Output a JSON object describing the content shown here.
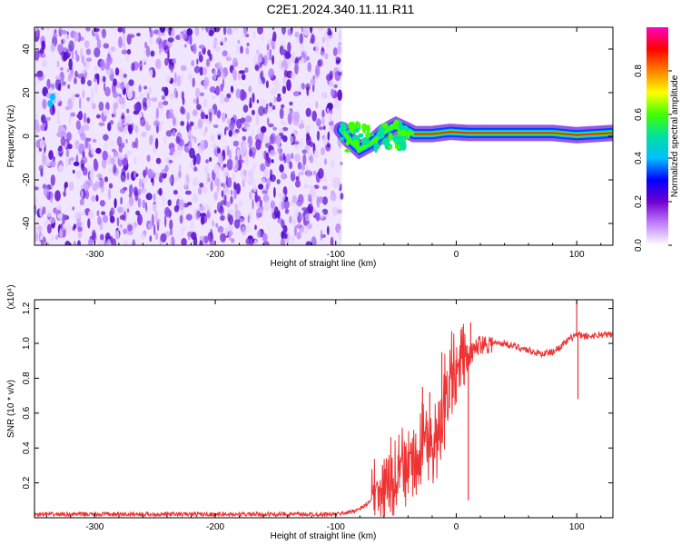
{
  "title": "C2E1.2024.340.11.11.R11",
  "colors": {
    "snr_line": "#ee3333",
    "colormap": [
      "#ffffff",
      "#c080ff",
      "#7000d0",
      "#0000ff",
      "#00c0ff",
      "#00e0a0",
      "#40ff00",
      "#ffff00",
      "#ff8000",
      "#ff0000",
      "#ff00c0"
    ]
  },
  "chart_data": [
    {
      "type": "heatmap",
      "name": "spectrogram",
      "xlabel": "Height of straight line (km)",
      "ylabel": "Frequency (Hz)",
      "xlim": [
        -350,
        130
      ],
      "ylim": [
        -50,
        50
      ],
      "xticks": [
        -300,
        -200,
        -100,
        0,
        100
      ],
      "yticks": [
        -40,
        -20,
        0,
        20,
        40
      ],
      "colorbar": {
        "label": "Normalized spectral amplitude",
        "range": [
          0,
          1
        ],
        "ticks": [
          "0.0",
          "0.2",
          "0.4",
          "0.6",
          "0.8"
        ]
      },
      "features": {
        "noise_region_x": [
          -350,
          -95
        ],
        "signal_track": [
          {
            "x": -95,
            "y": 3
          },
          {
            "x": -88,
            "y": -2
          },
          {
            "x": -80,
            "y": -6
          },
          {
            "x": -70,
            "y": -3
          },
          {
            "x": -60,
            "y": 2
          },
          {
            "x": -50,
            "y": 5
          },
          {
            "x": -42,
            "y": 3
          },
          {
            "x": -35,
            "y": 1
          },
          {
            "x": -20,
            "y": 1
          },
          {
            "x": -5,
            "y": 2
          },
          {
            "x": 10,
            "y": 1.5
          },
          {
            "x": 40,
            "y": 1.5
          },
          {
            "x": 80,
            "y": 1.5
          },
          {
            "x": 100,
            "y": 0.5
          },
          {
            "x": 130,
            "y": 1.5
          }
        ]
      }
    },
    {
      "type": "line",
      "name": "snr",
      "xlabel": "Height of straight line (km)",
      "ylabel": "SNR (10 * v/v)",
      "scale_label": "(x10⁴)",
      "xlim": [
        -350,
        130
      ],
      "ylim": [
        0,
        1.25
      ],
      "xticks": [
        -300,
        -200,
        -100,
        0,
        100
      ],
      "yticks": [
        "0.2",
        "0.4",
        "0.6",
        "0.8",
        "1.0",
        "1.2"
      ],
      "series": [
        {
          "x": [
            -350,
            -300,
            -250,
            -200,
            -150,
            -110,
            -100,
            -90,
            -80,
            -70,
            -60,
            -50,
            -45,
            -40,
            -35,
            -30,
            -25,
            -20,
            -15,
            -10,
            -5,
            0,
            5,
            10,
            15,
            20,
            25,
            30,
            40,
            50,
            60,
            70,
            80,
            90,
            95,
            100,
            105,
            110,
            120,
            130
          ],
          "y": [
            0.02,
            0.02,
            0.02,
            0.02,
            0.02,
            0.02,
            0.02,
            0.03,
            0.05,
            0.1,
            0.14,
            0.2,
            0.28,
            0.33,
            0.3,
            0.38,
            0.42,
            0.3,
            0.5,
            0.62,
            0.82,
            0.85,
            0.9,
            0.92,
            0.96,
            1.0,
            1.0,
            1.0,
            1.0,
            0.98,
            0.96,
            0.94,
            0.95,
            1.0,
            1.03,
            1.05,
            1.04,
            1.04,
            1.05,
            1.05
          ]
        }
      ],
      "spikes": [
        {
          "x": -28,
          "y": 0.75
        },
        {
          "x": -22,
          "y": 0.72
        },
        {
          "x": -12,
          "y": 0.95
        },
        {
          "x": 10,
          "y": 0.1
        },
        {
          "x": 12,
          "y": 1.12
        },
        {
          "x": 100,
          "y": 1.25
        },
        {
          "x": 101,
          "y": 0.68
        }
      ]
    }
  ]
}
